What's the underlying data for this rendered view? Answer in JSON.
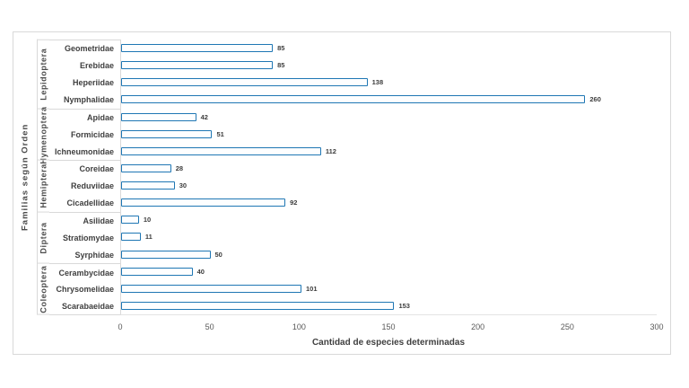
{
  "chart_data": {
    "type": "bar",
    "orientation": "horizontal",
    "title": "",
    "xlabel": "Cantidad de especies determinadas",
    "ylabel": "Familias según Orden",
    "xlim": [
      0,
      300
    ],
    "xticks": [
      0,
      50,
      100,
      150,
      200,
      250,
      300
    ],
    "grid": false,
    "legend": false,
    "colors": {
      "bar_border": "#1F77B4",
      "bar_fill": "#FDFEFF",
      "frame_border": "#D9D9D9",
      "tick_text": "#595959",
      "label_text": "#404040"
    },
    "groups": [
      {
        "order": "Lepidoptera",
        "families": [
          "Geometridae",
          "Erebidae",
          "Heperiidae",
          "Nymphalidae"
        ],
        "values": [
          85,
          85,
          138,
          260
        ]
      },
      {
        "order": "Hymenoptera",
        "families": [
          "Apidae",
          "Formicidae",
          "Ichneumonidae"
        ],
        "values": [
          42,
          51,
          112
        ]
      },
      {
        "order": "Hemiptera",
        "families": [
          "Coreidae",
          "Reduviidae",
          "Cicadellidae"
        ],
        "values": [
          28,
          30,
          92
        ]
      },
      {
        "order": "Diptera",
        "families": [
          "Asilidae",
          "Stratiomydae",
          "Syrphidae"
        ],
        "values": [
          10,
          11,
          50
        ]
      },
      {
        "order": "Coleoptera",
        "families": [
          "Cerambycidae",
          "Chrysomelidae",
          "Scarabaeidae"
        ],
        "values": [
          40,
          101,
          153
        ]
      }
    ]
  }
}
